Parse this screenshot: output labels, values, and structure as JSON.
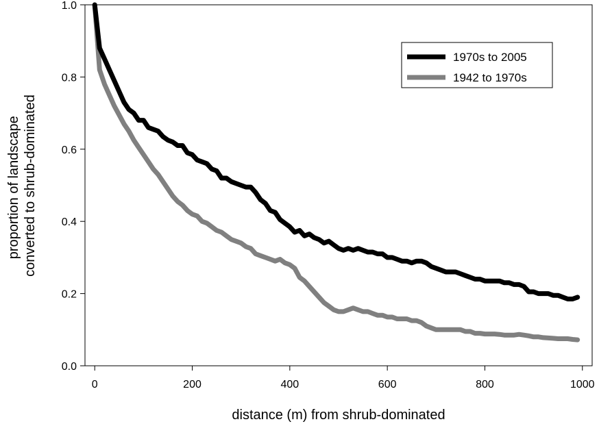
{
  "chart_data": {
    "type": "line",
    "title": "",
    "xlabel": "distance (m) from shrub-dominated",
    "ylabel_lines": [
      "proportion of landscape",
      "converted to shrub-dominated"
    ],
    "xlim": [
      -20,
      1020
    ],
    "ylim": [
      0.0,
      1.0
    ],
    "xticks": [
      0,
      200,
      400,
      600,
      800,
      1000
    ],
    "yticks": [
      0.0,
      0.2,
      0.4,
      0.6,
      0.8,
      1.0
    ],
    "xtick_labels": [
      "0",
      "200",
      "400",
      "600",
      "800",
      "1000"
    ],
    "ytick_labels": [
      "0.0",
      "0.2",
      "0.4",
      "0.6",
      "0.8",
      "1.0"
    ],
    "grid": false,
    "legend_placement": "top-right",
    "series": [
      {
        "name": "1970s to 2005",
        "color": "#000000",
        "x": [
          0,
          10,
          20,
          30,
          40,
          50,
          60,
          70,
          80,
          90,
          100,
          110,
          120,
          130,
          140,
          150,
          160,
          170,
          180,
          190,
          200,
          210,
          220,
          230,
          240,
          250,
          260,
          270,
          280,
          290,
          300,
          310,
          320,
          330,
          340,
          350,
          360,
          370,
          380,
          390,
          400,
          410,
          420,
          430,
          440,
          450,
          460,
          470,
          480,
          490,
          500,
          510,
          520,
          530,
          540,
          550,
          560,
          570,
          580,
          590,
          600,
          610,
          620,
          630,
          640,
          650,
          660,
          670,
          680,
          690,
          700,
          710,
          720,
          730,
          740,
          750,
          760,
          770,
          780,
          790,
          800,
          810,
          820,
          830,
          840,
          850,
          860,
          870,
          880,
          890,
          900,
          910,
          920,
          930,
          940,
          950,
          960,
          970,
          980,
          990
        ],
        "values": [
          1.0,
          0.88,
          0.85,
          0.82,
          0.79,
          0.76,
          0.73,
          0.71,
          0.7,
          0.68,
          0.68,
          0.66,
          0.655,
          0.65,
          0.635,
          0.625,
          0.62,
          0.61,
          0.61,
          0.59,
          0.585,
          0.57,
          0.565,
          0.56,
          0.545,
          0.54,
          0.52,
          0.52,
          0.51,
          0.505,
          0.5,
          0.495,
          0.495,
          0.48,
          0.46,
          0.45,
          0.43,
          0.425,
          0.405,
          0.395,
          0.385,
          0.37,
          0.375,
          0.36,
          0.365,
          0.355,
          0.35,
          0.34,
          0.345,
          0.335,
          0.325,
          0.32,
          0.325,
          0.32,
          0.325,
          0.32,
          0.315,
          0.315,
          0.31,
          0.31,
          0.3,
          0.3,
          0.295,
          0.29,
          0.29,
          0.285,
          0.29,
          0.29,
          0.285,
          0.275,
          0.27,
          0.265,
          0.26,
          0.26,
          0.26,
          0.255,
          0.25,
          0.245,
          0.24,
          0.24,
          0.235,
          0.235,
          0.235,
          0.235,
          0.23,
          0.23,
          0.225,
          0.225,
          0.22,
          0.205,
          0.205,
          0.2,
          0.2,
          0.2,
          0.195,
          0.195,
          0.19,
          0.185,
          0.185,
          0.19
        ]
      },
      {
        "name": "1942 to 1970s",
        "color": "#808080",
        "x": [
          0,
          10,
          20,
          30,
          40,
          50,
          60,
          70,
          80,
          90,
          100,
          110,
          120,
          130,
          140,
          150,
          160,
          170,
          180,
          190,
          200,
          210,
          220,
          230,
          240,
          250,
          260,
          270,
          280,
          290,
          300,
          310,
          320,
          330,
          340,
          350,
          360,
          370,
          380,
          390,
          400,
          410,
          420,
          430,
          440,
          450,
          460,
          470,
          480,
          490,
          500,
          510,
          520,
          530,
          540,
          550,
          560,
          570,
          580,
          590,
          600,
          610,
          620,
          630,
          640,
          650,
          660,
          670,
          680,
          690,
          700,
          710,
          720,
          730,
          740,
          750,
          760,
          770,
          780,
          790,
          800,
          810,
          820,
          830,
          840,
          850,
          860,
          870,
          880,
          890,
          900,
          910,
          920,
          930,
          940,
          950,
          960,
          970,
          980,
          990
        ],
        "values": [
          1.0,
          0.82,
          0.78,
          0.75,
          0.72,
          0.695,
          0.67,
          0.65,
          0.625,
          0.605,
          0.585,
          0.565,
          0.545,
          0.53,
          0.51,
          0.49,
          0.47,
          0.455,
          0.445,
          0.43,
          0.42,
          0.415,
          0.4,
          0.395,
          0.385,
          0.375,
          0.37,
          0.36,
          0.35,
          0.345,
          0.34,
          0.33,
          0.325,
          0.31,
          0.305,
          0.3,
          0.295,
          0.29,
          0.295,
          0.285,
          0.28,
          0.27,
          0.245,
          0.235,
          0.22,
          0.205,
          0.19,
          0.175,
          0.165,
          0.155,
          0.15,
          0.15,
          0.155,
          0.16,
          0.155,
          0.15,
          0.15,
          0.145,
          0.14,
          0.14,
          0.135,
          0.135,
          0.13,
          0.13,
          0.13,
          0.125,
          0.125,
          0.12,
          0.11,
          0.105,
          0.1,
          0.1,
          0.1,
          0.1,
          0.1,
          0.1,
          0.095,
          0.095,
          0.09,
          0.09,
          0.088,
          0.088,
          0.088,
          0.087,
          0.085,
          0.085,
          0.085,
          0.087,
          0.085,
          0.083,
          0.08,
          0.08,
          0.078,
          0.077,
          0.076,
          0.075,
          0.075,
          0.075,
          0.073,
          0.072
        ]
      }
    ]
  }
}
